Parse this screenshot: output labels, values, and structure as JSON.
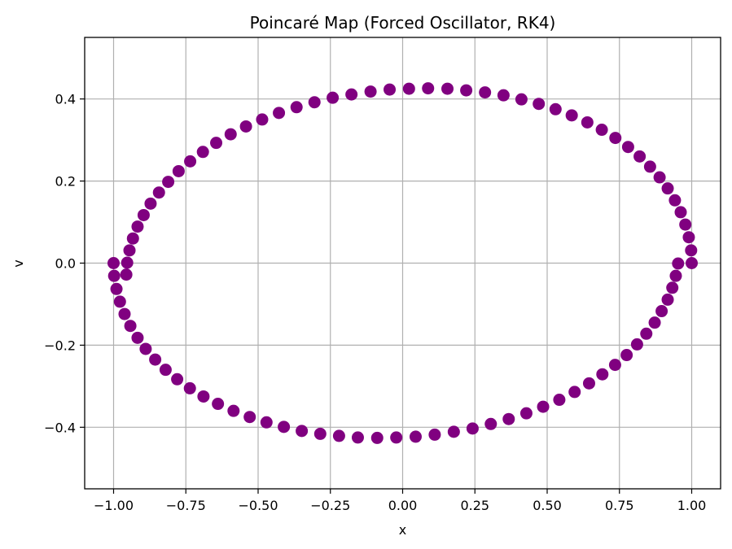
{
  "chart_data": {
    "type": "scatter",
    "title": "Poincaré Map (Forced Oscillator, RK4)",
    "xlabel": "x",
    "ylabel": "v",
    "xlim": [
      -1.1,
      1.1
    ],
    "ylim": [
      -0.55,
      0.55
    ],
    "x_ticks": [
      -1.0,
      -0.75,
      -0.5,
      -0.25,
      0.0,
      0.25,
      0.5,
      0.75,
      1.0
    ],
    "x_tick_labels": [
      "−1.00",
      "−0.75",
      "−0.50",
      "−0.25",
      "0.00",
      "0.25",
      "0.50",
      "0.75",
      "1.00"
    ],
    "y_ticks": [
      -0.4,
      -0.2,
      0.0,
      0.2,
      0.4
    ],
    "y_tick_labels": [
      "−0.4",
      "−0.2",
      "0.0",
      "0.2",
      "0.4"
    ],
    "grid": true,
    "point_color": "#800080",
    "series": [
      {
        "x": [
          1.0,
          0.998,
          0.99,
          0.978,
          0.962,
          0.942,
          0.917,
          0.889,
          0.856,
          0.82,
          0.78,
          0.736,
          0.689,
          0.639,
          0.585,
          0.529,
          0.471,
          0.411,
          0.349,
          0.285,
          0.22,
          0.155,
          0.088,
          0.022,
          -0.045,
          -0.111,
          -0.177,
          -0.242,
          -0.305,
          -0.367,
          -0.428,
          -0.486,
          -0.542,
          -0.595,
          -0.645,
          -0.691,
          -0.735,
          -0.775,
          -0.811,
          -0.843,
          -0.872,
          -0.896,
          -0.917,
          -0.933,
          -0.945,
          -0.953,
          -0.956,
          -1.0,
          -0.998,
          -0.99,
          -0.978,
          -0.962,
          -0.942,
          -0.917,
          -0.889,
          -0.856,
          -0.82,
          -0.78,
          -0.736,
          -0.689,
          -0.639,
          -0.585,
          -0.529,
          -0.471,
          -0.411,
          -0.349,
          -0.285,
          -0.22,
          -0.155,
          -0.088,
          -0.022,
          0.045,
          0.111,
          0.177,
          0.242,
          0.305,
          0.367,
          0.428,
          0.486,
          0.542,
          0.595,
          0.645,
          0.691,
          0.735,
          0.775,
          0.811,
          0.843,
          0.872,
          0.896,
          0.917,
          0.933,
          0.945,
          0.953
        ],
        "y": [
          0.0,
          0.031,
          0.063,
          0.094,
          0.124,
          0.153,
          0.182,
          0.209,
          0.235,
          0.26,
          0.283,
          0.305,
          0.325,
          0.343,
          0.36,
          0.375,
          0.388,
          0.399,
          0.409,
          0.416,
          0.421,
          0.425,
          0.426,
          0.425,
          0.423,
          0.418,
          0.411,
          0.403,
          0.392,
          0.38,
          0.366,
          0.35,
          0.333,
          0.314,
          0.293,
          0.271,
          0.248,
          0.224,
          0.198,
          0.172,
          0.145,
          0.117,
          0.089,
          0.06,
          0.031,
          0.001,
          -0.028,
          0.0,
          -0.031,
          -0.063,
          -0.094,
          -0.124,
          -0.153,
          -0.182,
          -0.209,
          -0.235,
          -0.26,
          -0.283,
          -0.305,
          -0.325,
          -0.343,
          -0.36,
          -0.375,
          -0.388,
          -0.399,
          -0.409,
          -0.416,
          -0.421,
          -0.425,
          -0.426,
          -0.425,
          -0.423,
          -0.418,
          -0.411,
          -0.403,
          -0.392,
          -0.38,
          -0.366,
          -0.35,
          -0.333,
          -0.314,
          -0.293,
          -0.271,
          -0.248,
          -0.224,
          -0.198,
          -0.172,
          -0.145,
          -0.117,
          -0.089,
          -0.06,
          -0.031,
          -0.001
        ]
      }
    ]
  }
}
